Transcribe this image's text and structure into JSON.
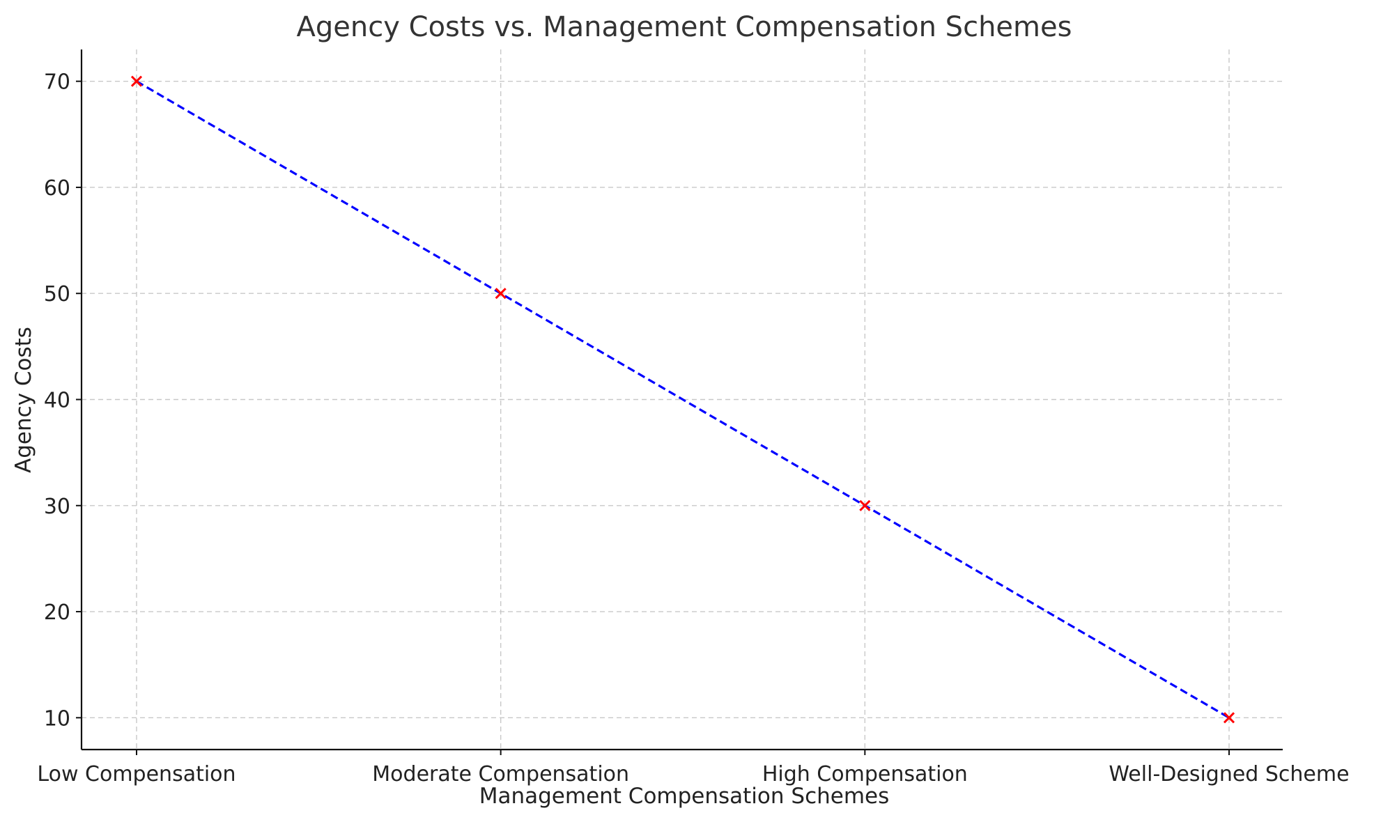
{
  "chart_data": {
    "type": "line",
    "title": "Agency Costs vs. Management Compensation Schemes",
    "xlabel": "Management Compensation Schemes",
    "ylabel": "Agency Costs",
    "categories": [
      "Low Compensation",
      "Moderate Compensation",
      "High Compensation",
      "Well-Designed Scheme"
    ],
    "series": [
      {
        "values": [
          70,
          50,
          30,
          10
        ],
        "line_color": "#0000ff",
        "line_style": "dashed",
        "marker": "x",
        "marker_color": "#ff0000"
      }
    ],
    "ylim": [
      7,
      73
    ],
    "yticks": [
      10,
      20,
      30,
      40,
      50,
      60,
      70
    ],
    "grid": true,
    "legend": "none"
  }
}
